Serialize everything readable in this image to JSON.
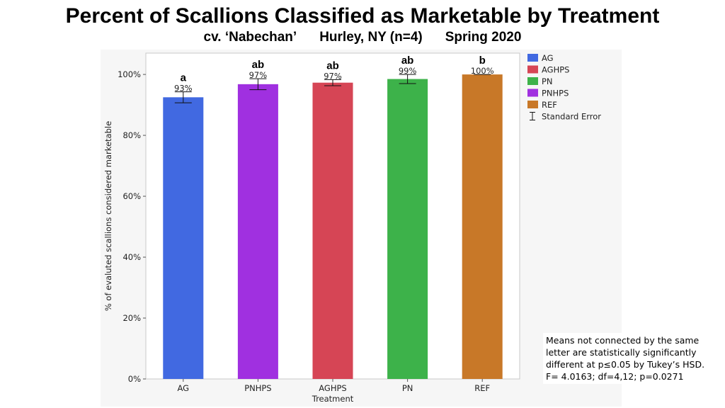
{
  "title": "Percent of Scallions Classified as Marketable by Treatment",
  "subtitle": {
    "cultivar": "cv.  ‘Nabechan’",
    "location": "Hurley, NY (n=4)",
    "season": "Spring 2020"
  },
  "note": {
    "line1": "Means not connected by the same",
    "line2": "letter are statistically significantly",
    "line3": "different at p≤0.05 by Tukey’s HSD.",
    "line4": "F= 4.0163; df=4,12; p=0.0271"
  },
  "chart_data": {
    "type": "bar",
    "categories": [
      "AG",
      "PNHPS",
      "AGHPS",
      "PN",
      "REF"
    ],
    "values": [
      92.5,
      96.8,
      97.3,
      98.5,
      100
    ],
    "value_labels": [
      "93%",
      "97%",
      "97%",
      "99%",
      "100%"
    ],
    "errors": [
      1.8,
      1.8,
      1.0,
      1.5,
      0
    ],
    "letters": [
      "a",
      "ab",
      "ab",
      "ab",
      "b"
    ],
    "colors": [
      "#4169e1",
      "#a030e0",
      "#d64555",
      "#3db24a",
      "#c87828"
    ],
    "xlabel": "Treatment",
    "ylabel": "% of evaluted scallions considered marketable",
    "ylim": [
      0,
      107
    ],
    "yticks": [
      "0%",
      "20%",
      "40%",
      "60%",
      "80%",
      "100%"
    ],
    "ytick_values": [
      0,
      20,
      40,
      60,
      80,
      100
    ],
    "legend": {
      "position": "top-right",
      "entries": [
        {
          "label": "AG",
          "color": "#4169e1"
        },
        {
          "label": "AGHPS",
          "color": "#d64555"
        },
        {
          "label": "PN",
          "color": "#3db24a"
        },
        {
          "label": "PNHPS",
          "color": "#a030e0"
        },
        {
          "label": "REF",
          "color": "#c87828"
        }
      ],
      "error_label": "Standard Error"
    }
  }
}
